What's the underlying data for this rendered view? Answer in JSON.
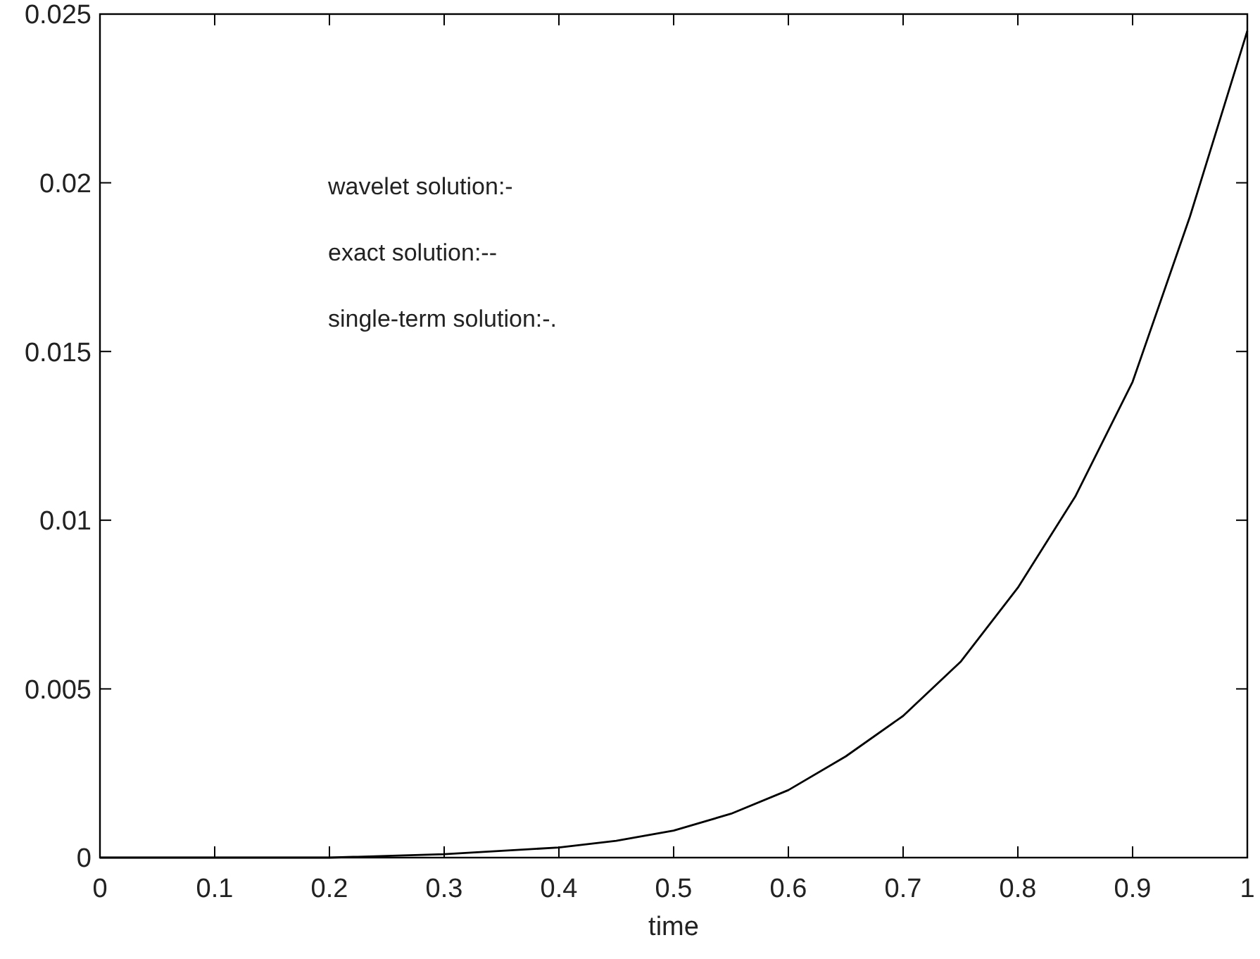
{
  "chart_data": {
    "type": "line",
    "xlabel": "time",
    "annotations": [
      "wavelet solution:-",
      "exact solution:--",
      "single-term solution:-."
    ],
    "x": [
      0,
      0.1,
      0.2,
      0.3,
      0.35,
      0.4,
      0.45,
      0.5,
      0.55,
      0.6,
      0.65,
      0.7,
      0.75,
      0.8,
      0.85,
      0.9,
      0.95,
      1
    ],
    "series": [
      {
        "color": "#000000",
        "values": [
          0,
          0,
          0,
          0.0001,
          0.0002,
          0.0003,
          0.0005,
          0.0008,
          0.0013,
          0.002,
          0.003,
          0.0042,
          0.0058,
          0.008,
          0.0107,
          0.0141,
          0.019,
          0.0245
        ]
      }
    ],
    "xlim": [
      0,
      1
    ],
    "xticks": [
      0,
      0.1,
      0.2,
      0.3,
      0.4,
      0.5,
      0.6,
      0.7,
      0.8,
      0.9,
      1
    ],
    "ylim": [
      0,
      0.025
    ],
    "yticks": [
      0,
      0.005,
      0.01,
      0.015,
      0.02,
      0.025
    ],
    "marker": "none",
    "line_style": "solid"
  }
}
